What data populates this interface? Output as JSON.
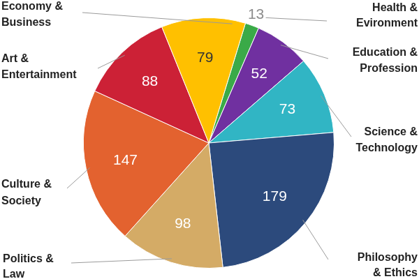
{
  "chart_data": {
    "type": "pie",
    "categories": [
      "Health & Evironment",
      "Education & Profession",
      "Science & Technology",
      "Philosophy & Ethics",
      "Politics & Law",
      "Culture & Society",
      "Art & Entertainment",
      "Economy & Business"
    ],
    "values": [
      13,
      52,
      73,
      179,
      98,
      147,
      88,
      79
    ],
    "colors": [
      "#3aaa48",
      "#7030a0",
      "#31b5c4",
      "#2c4a7c",
      "#d4ab66",
      "#e3622f",
      "#cc2136",
      "#ffc000"
    ],
    "data_labels": true
  }
}
